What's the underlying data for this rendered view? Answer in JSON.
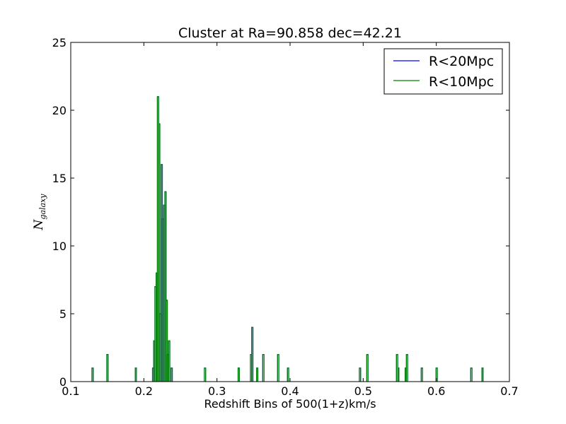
{
  "chart_data": {
    "type": "histogram-step",
    "title": "Cluster at Ra=90.858 dec=42.21",
    "xlabel": "Redshift Bins of 500(1+z)km/s",
    "ylabel_main": "N",
    "ylabel_sub": "galaxy",
    "xlim": [
      0.1,
      0.7
    ],
    "ylim": [
      0,
      25
    ],
    "xticks": [
      "0.1",
      "0.2",
      "0.3",
      "0.4",
      "0.5",
      "0.6",
      "0.7"
    ],
    "yticks": [
      "0",
      "5",
      "10",
      "15",
      "20",
      "25"
    ],
    "grid": false,
    "legend_placement": "top-right",
    "series": [
      {
        "name": "R<20Mpc",
        "color": "#0000ff",
        "bins": [
          [
            0.129,
            0.1307,
            1
          ],
          [
            0.1493,
            0.151,
            2
          ],
          [
            0.1882,
            0.1899,
            1
          ],
          [
            0.2118,
            0.2134,
            1
          ],
          [
            0.2134,
            0.2151,
            3
          ],
          [
            0.2151,
            0.2168,
            7
          ],
          [
            0.2168,
            0.2185,
            8
          ],
          [
            0.2185,
            0.2202,
            21
          ],
          [
            0.2202,
            0.2219,
            19
          ],
          [
            0.2219,
            0.2236,
            5
          ],
          [
            0.2236,
            0.2253,
            16
          ],
          [
            0.2253,
            0.227,
            12
          ],
          [
            0.227,
            0.2287,
            13
          ],
          [
            0.2287,
            0.2304,
            14
          ],
          [
            0.2304,
            0.2321,
            6
          ],
          [
            0.2321,
            0.2338,
            2
          ],
          [
            0.2338,
            0.2355,
            3
          ],
          [
            0.2372,
            0.2389,
            1
          ],
          [
            0.2828,
            0.2845,
            1
          ],
          [
            0.3289,
            0.3306,
            1
          ],
          [
            0.3458,
            0.3475,
            2
          ],
          [
            0.3475,
            0.3492,
            4
          ],
          [
            0.3542,
            0.3559,
            1
          ],
          [
            0.3626,
            0.3643,
            2
          ],
          [
            0.3829,
            0.3846,
            2
          ],
          [
            0.3964,
            0.3981,
            1
          ],
          [
            0.4948,
            0.4965,
            1
          ],
          [
            0.5049,
            0.5066,
            2
          ],
          [
            0.5455,
            0.5472,
            2
          ],
          [
            0.5472,
            0.5489,
            1
          ],
          [
            0.5574,
            0.5591,
            1
          ],
          [
            0.5591,
            0.5608,
            2
          ],
          [
            0.5794,
            0.5811,
            1
          ],
          [
            0.5997,
            0.6014,
            1
          ],
          [
            0.6471,
            0.6488,
            1
          ],
          [
            0.6624,
            0.6641,
            1
          ]
        ]
      },
      {
        "name": "R<10Mpc",
        "color": "#008000",
        "bins": [
          [
            0.129,
            0.1307,
            1
          ],
          [
            0.1493,
            0.151,
            2
          ],
          [
            0.1882,
            0.1899,
            1
          ],
          [
            0.2118,
            0.2134,
            1
          ],
          [
            0.2134,
            0.2151,
            3
          ],
          [
            0.2151,
            0.2168,
            7
          ],
          [
            0.2168,
            0.2185,
            8
          ],
          [
            0.2185,
            0.2202,
            21
          ],
          [
            0.2202,
            0.2219,
            19
          ],
          [
            0.2219,
            0.2236,
            5
          ],
          [
            0.2236,
            0.2253,
            16
          ],
          [
            0.2253,
            0.227,
            12
          ],
          [
            0.227,
            0.2287,
            13
          ],
          [
            0.2287,
            0.2304,
            14
          ],
          [
            0.2304,
            0.2321,
            6
          ],
          [
            0.2321,
            0.2338,
            2
          ],
          [
            0.2338,
            0.2355,
            3
          ],
          [
            0.2372,
            0.2389,
            1
          ],
          [
            0.2828,
            0.2845,
            1
          ],
          [
            0.3289,
            0.3306,
            1
          ],
          [
            0.3458,
            0.3475,
            2
          ],
          [
            0.3475,
            0.3492,
            4
          ],
          [
            0.3542,
            0.3559,
            1
          ],
          [
            0.3626,
            0.3643,
            2
          ],
          [
            0.3829,
            0.3846,
            2
          ],
          [
            0.3964,
            0.3981,
            1
          ],
          [
            0.4948,
            0.4965,
            1
          ],
          [
            0.5049,
            0.5066,
            2
          ],
          [
            0.5455,
            0.5472,
            2
          ],
          [
            0.5472,
            0.5489,
            1
          ],
          [
            0.5574,
            0.5591,
            1
          ],
          [
            0.5591,
            0.5608,
            2
          ],
          [
            0.5794,
            0.5811,
            1
          ],
          [
            0.5997,
            0.6014,
            1
          ],
          [
            0.6471,
            0.6488,
            1
          ],
          [
            0.6624,
            0.6641,
            1
          ]
        ]
      }
    ]
  }
}
